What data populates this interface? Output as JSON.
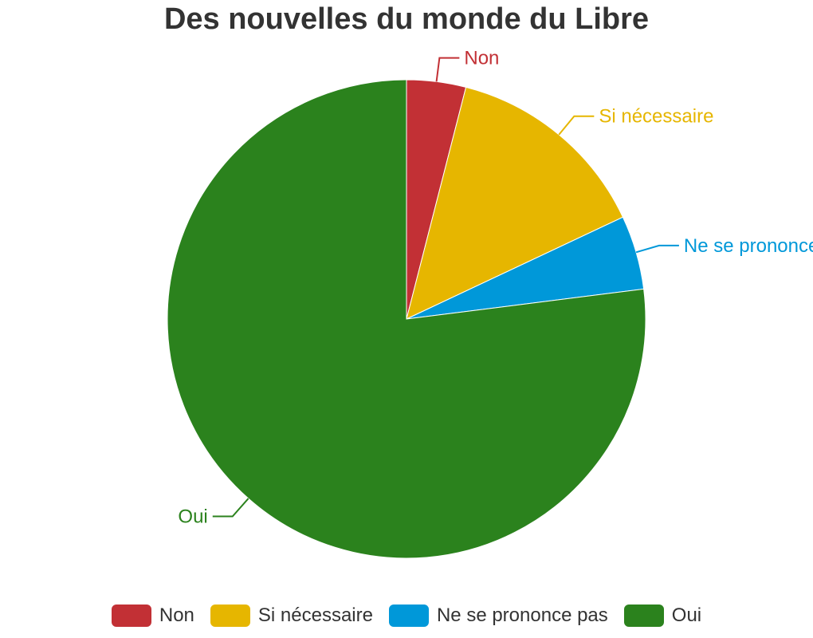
{
  "chart_data": {
    "type": "pie",
    "title": "Des nouvelles du monde du Libre",
    "categories": [
      "Non",
      "Si nécessaire",
      "Ne se prononce pas",
      "Oui"
    ],
    "values": [
      4,
      14,
      5,
      77
    ],
    "colors": [
      "#c23035",
      "#e6b600",
      "#0098d9",
      "#2b821d"
    ],
    "legend_position": "bottom"
  }
}
